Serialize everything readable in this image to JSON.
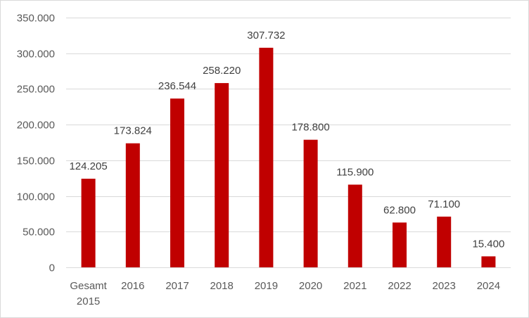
{
  "chart_data": {
    "type": "bar",
    "categories": [
      [
        "Gesamt",
        "2015"
      ],
      [
        "2016"
      ],
      [
        "2017"
      ],
      [
        "2018"
      ],
      [
        "2019"
      ],
      [
        "2020"
      ],
      [
        "2021"
      ],
      [
        "2022"
      ],
      [
        "2023"
      ],
      [
        "2024"
      ]
    ],
    "values": [
      124205,
      173824,
      236544,
      258220,
      307732,
      178800,
      115900,
      62800,
      71100,
      15400
    ],
    "data_labels": [
      "124.205",
      "173.824",
      "236.544",
      "258.220",
      "307.732",
      "178.800",
      "115.900",
      "62.800",
      "71.100",
      "15.400"
    ],
    "y_ticks": [
      0,
      50000,
      100000,
      150000,
      200000,
      250000,
      300000,
      350000
    ],
    "y_tick_labels": [
      "0",
      "50.000",
      "100.000",
      "150.000",
      "200.000",
      "250.000",
      "300.000",
      "350.000"
    ],
    "ylim": [
      0,
      350000
    ],
    "grid": true,
    "legend": "none",
    "bar_color": "#C00000",
    "grid_color": "#d9d9d9"
  }
}
